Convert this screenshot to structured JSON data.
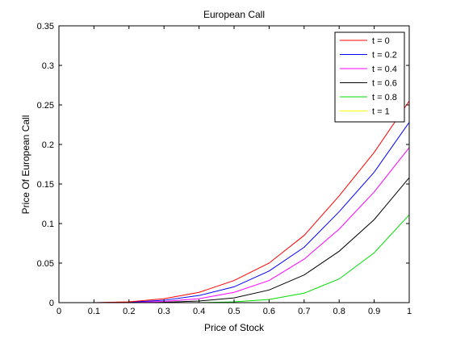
{
  "chart_data": {
    "type": "line",
    "title": "European Call",
    "xlabel": "Price of Stock",
    "ylabel": "Price Of European Call",
    "xlim": [
      0,
      1
    ],
    "ylim": [
      0,
      0.35
    ],
    "xticks": [
      "0",
      "0.1",
      "0.2",
      "0.3",
      "0.4",
      "0.5",
      "0.6",
      "0.7",
      "0.8",
      "0.9",
      "1"
    ],
    "yticks": [
      "0",
      "0.05",
      "0.1",
      "0.15",
      "0.2",
      "0.25",
      "0.3",
      "0.35"
    ],
    "legend_placement": "top-right",
    "grid": false,
    "x": [
      0,
      0.1,
      0.2,
      0.3,
      0.4,
      0.5,
      0.6,
      0.7,
      0.8,
      0.9,
      1.0
    ],
    "series": [
      {
        "name": "t = 0",
        "color": "#ff0000",
        "values": [
          0,
          0,
          0.001,
          0.005,
          0.013,
          0.028,
          0.05,
          0.085,
          0.135,
          0.19,
          0.255
        ]
      },
      {
        "name": "t = 0.2",
        "color": "#0000ff",
        "values": [
          0,
          0,
          0.0005,
          0.003,
          0.009,
          0.02,
          0.04,
          0.07,
          0.115,
          0.165,
          0.228
        ]
      },
      {
        "name": "t = 0.4",
        "color": "#ff00ff",
        "values": [
          0,
          0,
          0,
          0.0015,
          0.005,
          0.013,
          0.028,
          0.055,
          0.093,
          0.14,
          0.196
        ]
      },
      {
        "name": "t = 0.6",
        "color": "#000000",
        "values": [
          0,
          0,
          0,
          0.0005,
          0.002,
          0.006,
          0.016,
          0.035,
          0.065,
          0.105,
          0.158
        ]
      },
      {
        "name": "t = 0.8",
        "color": "#00dd00",
        "values": [
          0,
          0,
          0,
          0,
          0,
          0.001,
          0.004,
          0.012,
          0.03,
          0.063,
          0.111
        ]
      },
      {
        "name": "t = 1",
        "color": "#ffff00",
        "values": [
          0,
          0,
          0,
          0,
          0,
          0,
          0,
          0,
          0,
          0,
          0
        ]
      }
    ]
  }
}
